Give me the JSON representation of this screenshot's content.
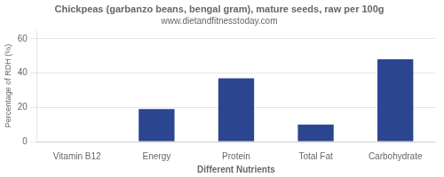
{
  "chart_data": {
    "type": "bar",
    "title": "Chickpeas (garbanzo beans, bengal gram), mature seeds, raw per 100g",
    "subtitle": "www.dietandfitnesstoday.com",
    "xlabel": "Different Nutrients",
    "ylabel": "Percentage of RDH (%)",
    "categories": [
      "Vitamin B12",
      "Energy",
      "Protein",
      "Total Fat",
      "Carbohydrate"
    ],
    "values": [
      0,
      19,
      37,
      10,
      48
    ],
    "color": "#2B4590",
    "ylim": [
      0,
      65
    ],
    "yticks": [
      0,
      20,
      40,
      60
    ],
    "grid": true
  }
}
